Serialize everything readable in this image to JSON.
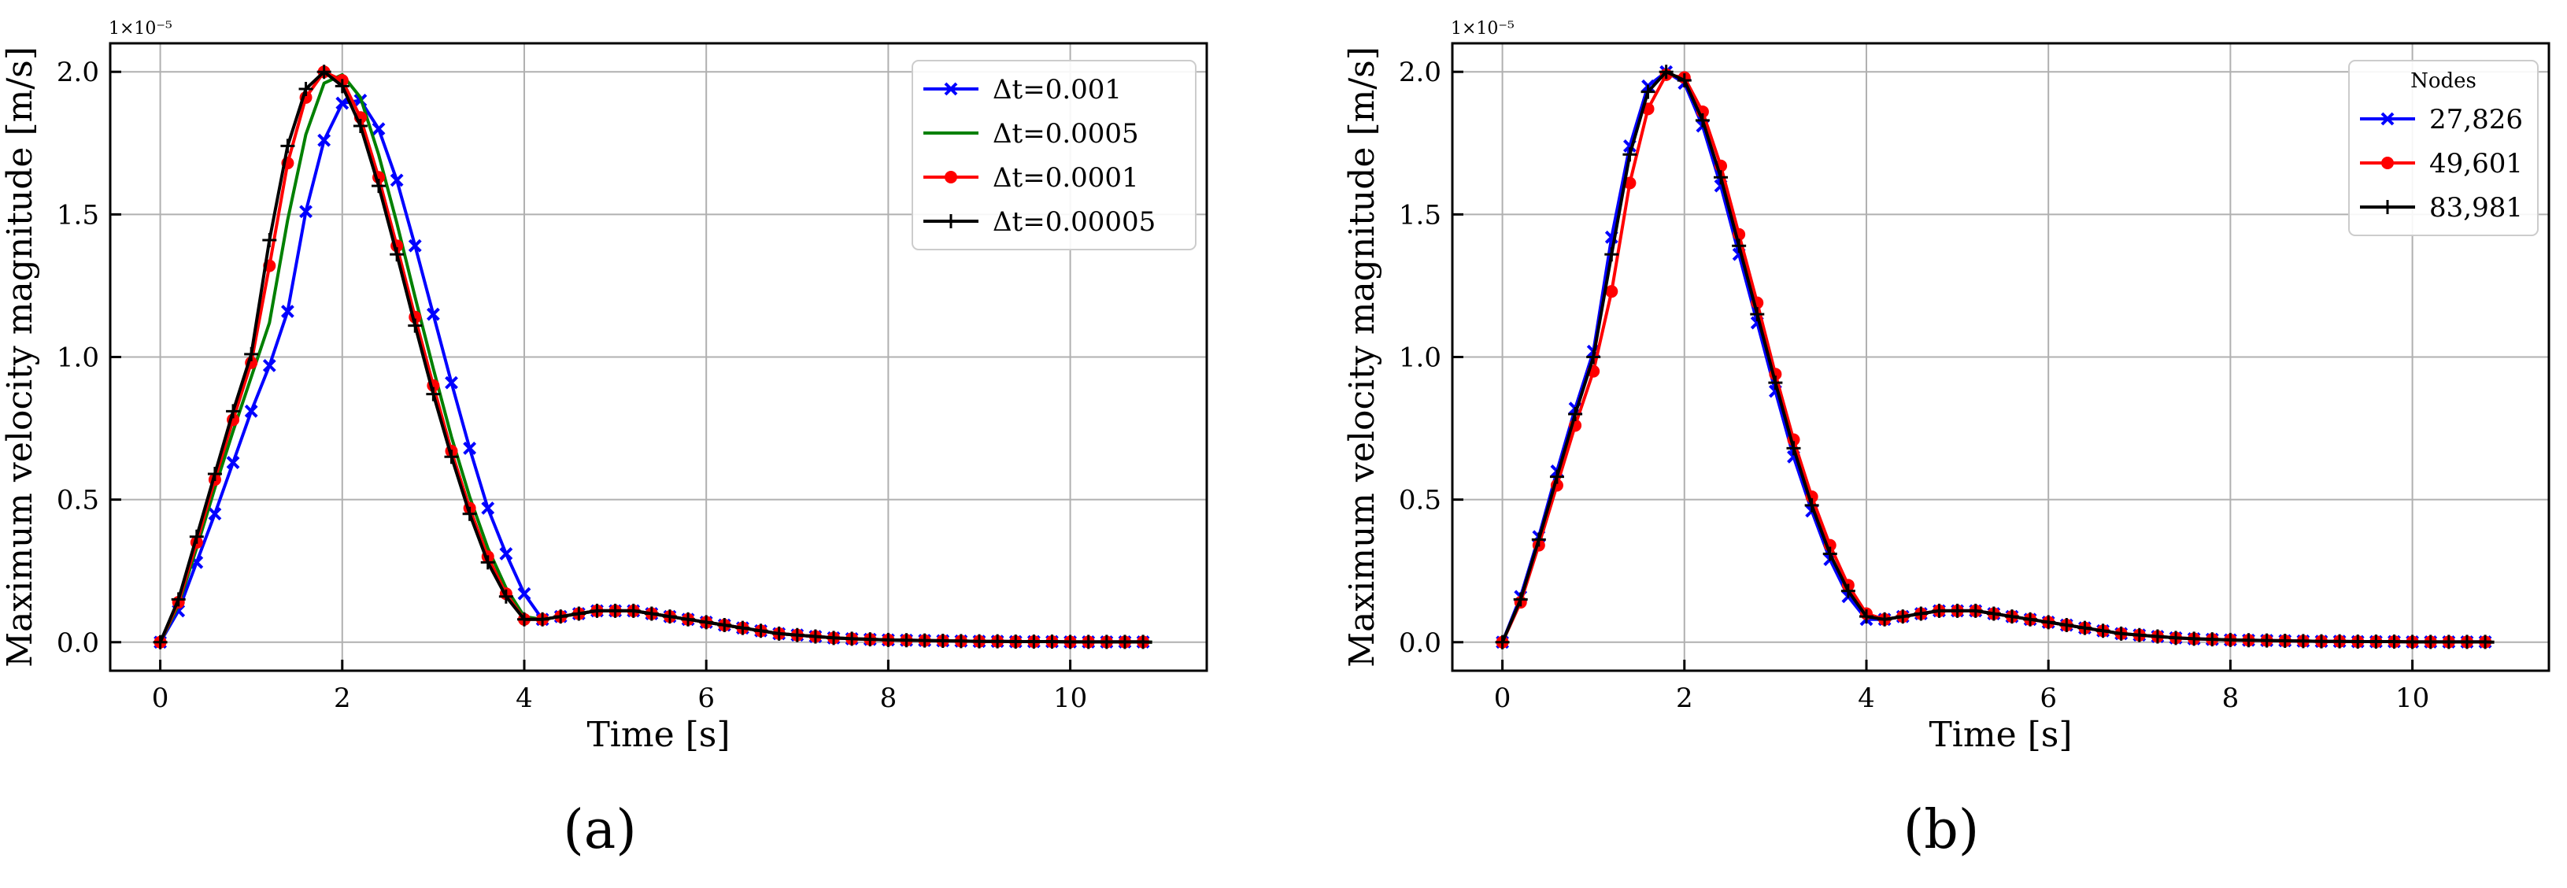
{
  "chart_data": [
    {
      "type": "line",
      "xlabel": "Time [s]",
      "ylabel": "Maximum velocity magnitude [m/s]",
      "y_scale_label": "1×10⁻⁵",
      "xlim": [
        -0.55,
        11.5
      ],
      "ylim": [
        -0.1,
        2.1
      ],
      "xticks": [
        0,
        2,
        4,
        6,
        8,
        10
      ],
      "xtick_labels": [
        "0",
        "2",
        "4",
        "6",
        "8",
        "10"
      ],
      "yticks": [
        0,
        0.5,
        1,
        1.5,
        2
      ],
      "ytick_labels": [
        "0.0",
        "0.5",
        "1.0",
        "1.5",
        "2.0"
      ],
      "grid": true,
      "legend_position": "top-right",
      "legend_title": "",
      "series": [
        {
          "name": "Δt=0.001",
          "color": "#0000ff",
          "marker": "x",
          "x": [
            0,
            0.2,
            0.4,
            0.6,
            0.8,
            1.0,
            1.2,
            1.4,
            1.6,
            1.8,
            2.0,
            2.2,
            2.4,
            2.6,
            2.8,
            3.0,
            3.2,
            3.4,
            3.6,
            3.8,
            4.0,
            4.2,
            4.4,
            4.6,
            4.8,
            5.0,
            5.2,
            5.4,
            5.6,
            5.8,
            6.0,
            6.2,
            6.4,
            6.6,
            6.8,
            7.0,
            7.2,
            7.4,
            7.6,
            7.8,
            8.0,
            8.2,
            8.4,
            8.6,
            8.8,
            9.0,
            9.2,
            9.4,
            9.6,
            9.8,
            10.0,
            10.2,
            10.4,
            10.6,
            10.8
          ],
          "y": [
            0,
            0.11,
            0.28,
            0.45,
            0.63,
            0.81,
            0.97,
            1.16,
            1.51,
            1.76,
            1.89,
            1.9,
            1.8,
            1.62,
            1.39,
            1.15,
            0.91,
            0.68,
            0.47,
            0.31,
            0.17,
            0.08,
            0.09,
            0.1,
            0.11,
            0.11,
            0.11,
            0.1,
            0.09,
            0.08,
            0.07,
            0.06,
            0.05,
            0.04,
            0.03,
            0.025,
            0.02,
            0.015,
            0.012,
            0.01,
            0.008,
            0.007,
            0.006,
            0.005,
            0.004,
            0.003,
            0.003,
            0.002,
            0.002,
            0.002,
            0.001,
            0.001,
            0.001,
            0.001,
            0.001
          ]
        },
        {
          "name": "Δt=0.0005",
          "color": "#008000",
          "marker": "none",
          "x": [
            0,
            0.2,
            0.4,
            0.6,
            0.8,
            1.0,
            1.2,
            1.4,
            1.6,
            1.8,
            2.0,
            2.2,
            2.4,
            2.6,
            2.8,
            3.0,
            3.2,
            3.4,
            3.6,
            3.8,
            4.0,
            4.2,
            4.4,
            4.6,
            4.8,
            5.0,
            5.2,
            5.4,
            5.6,
            5.8,
            6.0,
            6.2,
            6.4,
            6.6,
            6.8,
            7.0,
            7.2,
            7.4,
            7.6,
            7.8,
            8.0,
            8.2,
            8.4,
            8.6,
            8.8,
            9.0,
            9.2,
            9.4,
            9.6,
            9.8,
            10.0,
            10.2,
            10.4,
            10.6,
            10.8,
            10.9
          ],
          "y": [
            0,
            0.13,
            0.33,
            0.54,
            0.74,
            0.93,
            1.12,
            1.48,
            1.78,
            1.96,
            1.99,
            1.91,
            1.71,
            1.47,
            1.21,
            0.96,
            0.72,
            0.51,
            0.33,
            0.19,
            0.09,
            0.08,
            0.09,
            0.1,
            0.11,
            0.11,
            0.11,
            0.1,
            0.09,
            0.08,
            0.07,
            0.06,
            0.05,
            0.04,
            0.03,
            0.025,
            0.02,
            0.015,
            0.012,
            0.01,
            0.008,
            0.007,
            0.006,
            0.005,
            0.004,
            0.003,
            0.003,
            0.002,
            0.002,
            0.002,
            0.001,
            0.001,
            0.001,
            0.001,
            0.001,
            0
          ]
        },
        {
          "name": "Δt=0.0001",
          "color": "#ff0000",
          "marker": "o",
          "x": [
            0,
            0.2,
            0.4,
            0.6,
            0.8,
            1.0,
            1.2,
            1.4,
            1.6,
            1.8,
            2.0,
            2.2,
            2.4,
            2.6,
            2.8,
            3.0,
            3.2,
            3.4,
            3.6,
            3.8,
            4.0,
            4.2,
            4.4,
            4.6,
            4.8,
            5.0,
            5.2,
            5.4,
            5.6,
            5.8,
            6.0,
            6.2,
            6.4,
            6.6,
            6.8,
            7.0,
            7.2,
            7.4,
            7.6,
            7.8,
            8.0,
            8.2,
            8.4,
            8.6,
            8.8,
            9.0,
            9.2,
            9.4,
            9.6,
            9.8,
            10.0,
            10.2,
            10.4,
            10.6,
            10.8
          ],
          "y": [
            0,
            0.14,
            0.35,
            0.57,
            0.78,
            0.98,
            1.32,
            1.68,
            1.91,
            2.0,
            1.97,
            1.84,
            1.63,
            1.39,
            1.14,
            0.9,
            0.67,
            0.47,
            0.3,
            0.17,
            0.08,
            0.08,
            0.09,
            0.1,
            0.11,
            0.11,
            0.11,
            0.1,
            0.09,
            0.08,
            0.07,
            0.06,
            0.05,
            0.04,
            0.03,
            0.025,
            0.02,
            0.015,
            0.012,
            0.01,
            0.008,
            0.007,
            0.006,
            0.005,
            0.004,
            0.003,
            0.003,
            0.002,
            0.002,
            0.002,
            0.001,
            0.001,
            0.001,
            0.001,
            0.001
          ]
        },
        {
          "name": "Δt=0.00005",
          "color": "#000000",
          "marker": "+",
          "x": [
            0,
            0.2,
            0.4,
            0.6,
            0.8,
            1.0,
            1.2,
            1.4,
            1.6,
            1.8,
            2.0,
            2.2,
            2.4,
            2.6,
            2.8,
            3.0,
            3.2,
            3.4,
            3.6,
            3.8,
            4.0,
            4.2,
            4.4,
            4.6,
            4.8,
            5.0,
            5.2,
            5.4,
            5.6,
            5.8,
            6.0,
            6.2,
            6.4,
            6.6,
            6.8,
            7.0,
            7.2,
            7.4,
            7.6,
            7.8,
            8.0,
            8.2,
            8.4,
            8.6,
            8.8,
            9.0,
            9.2,
            9.4,
            9.6,
            9.8,
            10.0,
            10.2,
            10.4,
            10.6,
            10.8,
            10.9
          ],
          "y": [
            0,
            0.15,
            0.37,
            0.59,
            0.81,
            1.01,
            1.41,
            1.74,
            1.94,
            2.0,
            1.95,
            1.81,
            1.6,
            1.36,
            1.11,
            0.87,
            0.65,
            0.45,
            0.28,
            0.16,
            0.08,
            0.08,
            0.09,
            0.1,
            0.11,
            0.11,
            0.11,
            0.1,
            0.09,
            0.08,
            0.07,
            0.06,
            0.05,
            0.04,
            0.03,
            0.025,
            0.02,
            0.015,
            0.012,
            0.01,
            0.008,
            0.007,
            0.006,
            0.005,
            0.004,
            0.003,
            0.003,
            0.002,
            0.002,
            0.002,
            0.001,
            0.001,
            0.001,
            0.001,
            0.001,
            0
          ]
        }
      ]
    },
    {
      "type": "line",
      "xlabel": "Time [s]",
      "ylabel": "Maximum velocity magnitude [m/s]",
      "y_scale_label": "1×10⁻⁵",
      "xlim": [
        -0.55,
        11.5
      ],
      "ylim": [
        -0.1,
        2.1
      ],
      "xticks": [
        0,
        2,
        4,
        6,
        8,
        10
      ],
      "xtick_labels": [
        "0",
        "2",
        "4",
        "6",
        "8",
        "10"
      ],
      "yticks": [
        0,
        0.5,
        1,
        1.5,
        2
      ],
      "ytick_labels": [
        "0.0",
        "0.5",
        "1.0",
        "1.5",
        "2.0"
      ],
      "grid": true,
      "legend_position": "top-right",
      "legend_title": "Nodes",
      "series": [
        {
          "name": "27,826",
          "color": "#0000ff",
          "marker": "x",
          "x": [
            0,
            0.2,
            0.4,
            0.6,
            0.8,
            1.0,
            1.2,
            1.4,
            1.6,
            1.8,
            2.0,
            2.2,
            2.4,
            2.6,
            2.8,
            3.0,
            3.2,
            3.4,
            3.6,
            3.8,
            4.0,
            4.2,
            4.4,
            4.6,
            4.8,
            5.0,
            5.2,
            5.4,
            5.6,
            5.8,
            6.0,
            6.2,
            6.4,
            6.6,
            6.8,
            7.0,
            7.2,
            7.4,
            7.6,
            7.8,
            8.0,
            8.2,
            8.4,
            8.6,
            8.8,
            9.0,
            9.2,
            9.4,
            9.6,
            9.8,
            10.0,
            10.2,
            10.4,
            10.6,
            10.8
          ],
          "y": [
            0,
            0.16,
            0.37,
            0.6,
            0.82,
            1.02,
            1.42,
            1.74,
            1.95,
            2.0,
            1.96,
            1.81,
            1.6,
            1.36,
            1.12,
            0.88,
            0.65,
            0.46,
            0.29,
            0.16,
            0.08,
            0.08,
            0.09,
            0.1,
            0.11,
            0.11,
            0.11,
            0.1,
            0.09,
            0.08,
            0.07,
            0.06,
            0.05,
            0.04,
            0.03,
            0.025,
            0.02,
            0.015,
            0.012,
            0.01,
            0.008,
            0.007,
            0.006,
            0.005,
            0.004,
            0.003,
            0.003,
            0.002,
            0.002,
            0.002,
            0.001,
            0.001,
            0.001,
            0.001,
            0.001
          ]
        },
        {
          "name": "49,601",
          "color": "#ff0000",
          "marker": "o",
          "x": [
            0,
            0.2,
            0.4,
            0.6,
            0.8,
            1.0,
            1.2,
            1.4,
            1.6,
            1.8,
            2.0,
            2.2,
            2.4,
            2.6,
            2.8,
            3.0,
            3.2,
            3.4,
            3.6,
            3.8,
            4.0,
            4.2,
            4.4,
            4.6,
            4.8,
            5.0,
            5.2,
            5.4,
            5.6,
            5.8,
            6.0,
            6.2,
            6.4,
            6.6,
            6.8,
            7.0,
            7.2,
            7.4,
            7.6,
            7.8,
            8.0,
            8.2,
            8.4,
            8.6,
            8.8,
            9.0,
            9.2,
            9.4,
            9.6,
            9.8,
            10.0,
            10.2,
            10.4,
            10.6,
            10.8
          ],
          "y": [
            0,
            0.14,
            0.34,
            0.55,
            0.76,
            0.95,
            1.23,
            1.61,
            1.87,
            1.99,
            1.98,
            1.86,
            1.67,
            1.43,
            1.19,
            0.94,
            0.71,
            0.51,
            0.34,
            0.2,
            0.1,
            0.08,
            0.09,
            0.1,
            0.11,
            0.11,
            0.11,
            0.1,
            0.09,
            0.08,
            0.07,
            0.06,
            0.05,
            0.04,
            0.03,
            0.025,
            0.02,
            0.015,
            0.012,
            0.01,
            0.008,
            0.007,
            0.006,
            0.005,
            0.004,
            0.003,
            0.003,
            0.002,
            0.002,
            0.002,
            0.001,
            0.001,
            0.001,
            0.001,
            0.001
          ]
        },
        {
          "name": "83,981",
          "color": "#000000",
          "marker": "+",
          "x": [
            0,
            0.2,
            0.4,
            0.6,
            0.8,
            1.0,
            1.2,
            1.4,
            1.6,
            1.8,
            2.0,
            2.2,
            2.4,
            2.6,
            2.8,
            3.0,
            3.2,
            3.4,
            3.6,
            3.8,
            4.0,
            4.2,
            4.4,
            4.6,
            4.8,
            5.0,
            5.2,
            5.4,
            5.6,
            5.8,
            6.0,
            6.2,
            6.4,
            6.6,
            6.8,
            7.0,
            7.2,
            7.4,
            7.6,
            7.8,
            8.0,
            8.2,
            8.4,
            8.6,
            8.8,
            9.0,
            9.2,
            9.4,
            9.6,
            9.8,
            10.0,
            10.2,
            10.4,
            10.6,
            10.8,
            10.9
          ],
          "y": [
            0,
            0.15,
            0.36,
            0.58,
            0.8,
            1.0,
            1.36,
            1.71,
            1.93,
            2.0,
            1.97,
            1.83,
            1.63,
            1.39,
            1.15,
            0.91,
            0.68,
            0.48,
            0.31,
            0.18,
            0.09,
            0.08,
            0.09,
            0.1,
            0.11,
            0.11,
            0.11,
            0.1,
            0.09,
            0.08,
            0.07,
            0.06,
            0.05,
            0.04,
            0.03,
            0.025,
            0.02,
            0.015,
            0.012,
            0.01,
            0.008,
            0.007,
            0.006,
            0.005,
            0.004,
            0.003,
            0.003,
            0.002,
            0.002,
            0.002,
            0.001,
            0.001,
            0.001,
            0.001,
            0.001,
            0
          ]
        }
      ]
    }
  ],
  "captions": [
    "(a)",
    "(b)"
  ]
}
